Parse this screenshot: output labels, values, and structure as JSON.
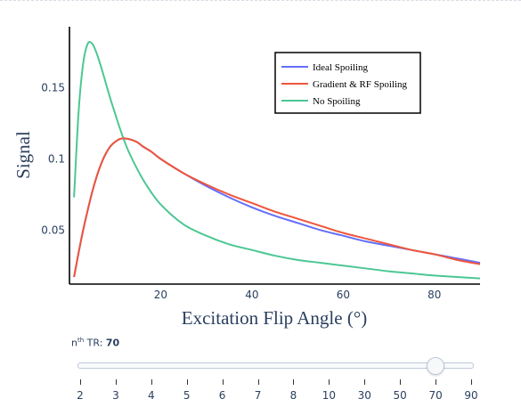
{
  "chart_data": {
    "type": "line",
    "xlabel": "Excitation Flip Angle (°)",
    "ylabel": "Signal",
    "xlim": [
      0,
      90
    ],
    "ylim": [
      0.012,
      0.193
    ],
    "x_ticks": [
      "20",
      "40",
      "60",
      "80"
    ],
    "y_ticks": [
      "0.05",
      "0.1",
      "0.15"
    ],
    "x_tick_values": [
      20,
      40,
      60,
      80
    ],
    "y_tick_values": [
      0.05,
      0.1,
      0.15
    ],
    "legend_position": "top-right",
    "series": [
      {
        "name": "Ideal Spoiling",
        "color": "#636efa",
        "x": [
          1,
          2,
          3,
          4,
          5,
          6,
          7,
          8,
          9,
          10,
          11,
          12,
          13,
          14,
          15,
          16,
          18,
          20,
          25,
          30,
          35,
          40,
          45,
          50,
          55,
          60,
          65,
          70,
          75,
          80,
          85,
          90
        ],
        "y": [
          0.017,
          0.034,
          0.05,
          0.064,
          0.077,
          0.088,
          0.097,
          0.104,
          0.109,
          0.112,
          0.114,
          0.1145,
          0.114,
          0.113,
          0.1115,
          0.109,
          0.105,
          0.1,
          0.09,
          0.081,
          0.073,
          0.066,
          0.06,
          0.055,
          0.05,
          0.046,
          0.042,
          0.039,
          0.036,
          0.033,
          0.03,
          0.027
        ]
      },
      {
        "name": "Gradient & RF Spoiling",
        "color": "#ef553b",
        "x": [
          1,
          2,
          3,
          4,
          5,
          6,
          7,
          8,
          9,
          10,
          11,
          12,
          13,
          14,
          15,
          16,
          18,
          20,
          25,
          30,
          35,
          40,
          45,
          50,
          55,
          60,
          65,
          70,
          75,
          80,
          85,
          90
        ],
        "y": [
          0.017,
          0.034,
          0.05,
          0.064,
          0.077,
          0.088,
          0.097,
          0.104,
          0.109,
          0.112,
          0.114,
          0.1145,
          0.114,
          0.113,
          0.1115,
          0.109,
          0.105,
          0.1,
          0.09,
          0.082,
          0.075,
          0.069,
          0.063,
          0.058,
          0.053,
          0.048,
          0.044,
          0.04,
          0.036,
          0.033,
          0.029,
          0.026
        ]
      },
      {
        "name": "No Spoiling",
        "color": "#4cc793",
        "x": [
          1,
          2,
          3,
          4,
          5,
          6,
          7,
          8,
          9,
          10,
          11,
          12,
          13,
          15,
          17,
          20,
          25,
          30,
          35,
          40,
          45,
          50,
          55,
          60,
          65,
          70,
          75,
          80,
          85,
          90
        ],
        "y": [
          0.073,
          0.133,
          0.167,
          0.181,
          0.181,
          0.174,
          0.164,
          0.153,
          0.142,
          0.132,
          0.122,
          0.113,
          0.105,
          0.092,
          0.081,
          0.068,
          0.054,
          0.046,
          0.04,
          0.036,
          0.032,
          0.029,
          0.027,
          0.025,
          0.023,
          0.021,
          0.0195,
          0.018,
          0.017,
          0.016
        ]
      }
    ]
  },
  "slider": {
    "label_prefix": "n",
    "label_sup": "th",
    "label_suffix": " TR: ",
    "current_value": "70",
    "steps": [
      "2",
      "3",
      "4",
      "5",
      "6",
      "7",
      "8",
      "10",
      "30",
      "50",
      "70",
      "90"
    ],
    "active_index": 10
  }
}
